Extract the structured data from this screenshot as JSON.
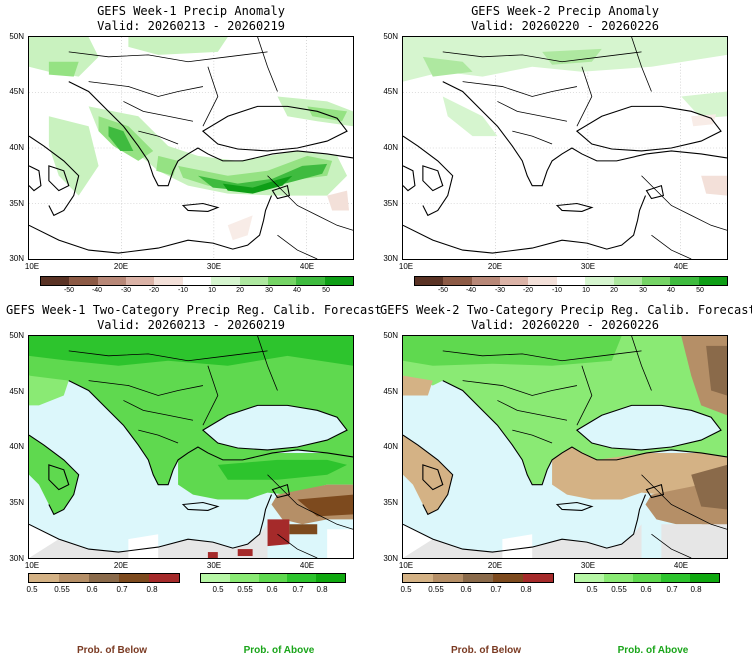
{
  "panels": [
    {
      "title": "GEFS Week-1 Precip Anomaly",
      "valid": "Valid: 20260213 - 20260219"
    },
    {
      "title": "GEFS Week-2 Precip Anomaly",
      "valid": "Valid: 20260220 - 20260226"
    },
    {
      "title": "GEFS Week-1 Two-Category Precip Reg. Calib. Forecast",
      "valid": "Valid: 20260213 - 20260219"
    },
    {
      "title": "GEFS Week-2 Two-Category Precip Reg. Calib. Forecast",
      "valid": "Valid: 20260220 - 20260226"
    }
  ],
  "axes": {
    "lat_labels": [
      "50N",
      "45N",
      "40N",
      "35N",
      "30N"
    ],
    "lon_labels": [
      "10E",
      "20E",
      "30E",
      "40E"
    ]
  },
  "anomaly_scale": {
    "labels": [
      "-50",
      "-40",
      "-30",
      "-20",
      "-10",
      "10",
      "20",
      "30",
      "40",
      "50"
    ],
    "colors": [
      "#5a3325",
      "#8c5a45",
      "#b88878",
      "#dbb3a7",
      "#f3e0d9",
      "#ffffff",
      "#d6f5cf",
      "#aee8a0",
      "#76d466",
      "#3fbb3f",
      "#0e9e16"
    ]
  },
  "prob_scale": {
    "below_labels": [
      "0.5",
      "0.55",
      "0.6",
      "0.7",
      "0.8"
    ],
    "below_colors": [
      "#d4b285",
      "#b58f67",
      "#8a6a4a",
      "#7d4a1e",
      "#a52a2a"
    ],
    "above_labels": [
      "0.5",
      "0.55",
      "0.6",
      "0.7",
      "0.8"
    ],
    "above_colors": [
      "#b7f7a6",
      "#8aea74",
      "#5fd94f",
      "#2dc42d",
      "#0fa80f"
    ],
    "below_title": "Prob. of Below",
    "above_title": "Prob. of Above",
    "below_title_color": "#7a3a22",
    "above_title_color": "#1aa51a"
  },
  "map_colors": {
    "sea": "#dcf7fb",
    "gray": "#e6e6e6",
    "land_white": "#ffffff"
  }
}
